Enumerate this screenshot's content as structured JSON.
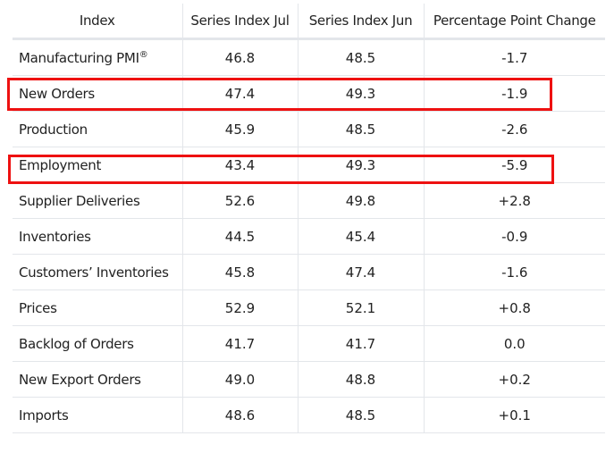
{
  "table": {
    "headers": [
      "Index",
      "Series Index Jul",
      "Series Index Jun",
      "Percentage Point Change"
    ],
    "rows": [
      {
        "label": "Manufacturing PMI",
        "sup": "®",
        "jul": "46.8",
        "jun": "48.5",
        "change": "-1.7"
      },
      {
        "label": "New Orders",
        "jul": "47.4",
        "jun": "49.3",
        "change": "-1.9"
      },
      {
        "label": "Production",
        "jul": "45.9",
        "jun": "48.5",
        "change": "-2.6"
      },
      {
        "label": "Employment",
        "jul": "43.4",
        "jun": "49.3",
        "change": "-5.9"
      },
      {
        "label": "Supplier Deliveries",
        "jul": "52.6",
        "jun": "49.8",
        "change": "+2.8"
      },
      {
        "label": "Inventories",
        "jul": "44.5",
        "jun": "45.4",
        "change": "-0.9"
      },
      {
        "label": "Customers’ Inventories",
        "jul": "45.8",
        "jun": "47.4",
        "change": "-1.6"
      },
      {
        "label": "Prices",
        "jul": "52.9",
        "jun": "52.1",
        "change": "+0.8"
      },
      {
        "label": "Backlog of Orders",
        "jul": "41.7",
        "jun": "41.7",
        "change": "0.0"
      },
      {
        "label": "New Export Orders",
        "jul": "49.0",
        "jun": "48.8",
        "change": "+0.2"
      },
      {
        "label": "Imports",
        "jul": "48.6",
        "jun": "48.5",
        "change": "+0.1"
      }
    ]
  },
  "highlight_color": "#ee1111"
}
